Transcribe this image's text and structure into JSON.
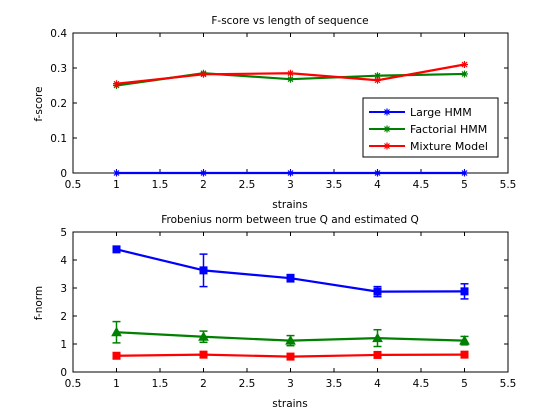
{
  "chart_data": [
    {
      "type": "line",
      "title": "F-score vs length of sequence",
      "xlabel": "strains",
      "ylabel": "f-score",
      "xlim": [
        0.5,
        5.5
      ],
      "ylim": [
        0,
        0.4
      ],
      "xticks": [
        0.5,
        1,
        1.5,
        2,
        2.5,
        3,
        3.5,
        4,
        4.5,
        5,
        5.5
      ],
      "yticks": [
        0,
        0.1,
        0.2,
        0.3,
        0.4
      ],
      "grid": false,
      "legend_position": "right",
      "x": [
        1,
        2,
        3,
        4,
        5
      ],
      "series": [
        {
          "name": "Large HMM",
          "color": "#0000ff",
          "marker": "star",
          "values": [
            0,
            0,
            0,
            0,
            0
          ]
        },
        {
          "name": "Factorial HMM",
          "color": "#008000",
          "marker": "star",
          "values": [
            0.25,
            0.285,
            0.268,
            0.278,
            0.283
          ]
        },
        {
          "name": "Mixture Model",
          "color": "#ff0000",
          "marker": "star",
          "values": [
            0.255,
            0.282,
            0.285,
            0.265,
            0.31
          ]
        }
      ]
    },
    {
      "type": "line",
      "title": "Frobenius norm between true Q and estimated Q",
      "xlabel": "strains",
      "ylabel": "f-norm",
      "xlim": [
        0.5,
        5.5
      ],
      "ylim": [
        0,
        5
      ],
      "xticks": [
        0.5,
        1,
        1.5,
        2,
        2.5,
        3,
        3.5,
        4,
        4.5,
        5,
        5.5
      ],
      "yticks": [
        0,
        1,
        2,
        3,
        4,
        5
      ],
      "grid": false,
      "x": [
        1,
        2,
        3,
        4,
        5
      ],
      "series": [
        {
          "color": "#0000ff",
          "marker": "square",
          "values": [
            4.38,
            3.63,
            3.35,
            2.87,
            2.88
          ],
          "err": [
            0.1,
            0.58,
            0.13,
            0.18,
            0.27
          ]
        },
        {
          "color": "#008000",
          "marker": "triangle",
          "values": [
            1.42,
            1.26,
            1.12,
            1.21,
            1.12
          ],
          "err": [
            0.38,
            0.2,
            0.18,
            0.3,
            0.15
          ]
        },
        {
          "color": "#ff0000",
          "marker": "square",
          "values": [
            0.58,
            0.62,
            0.55,
            0.61,
            0.62
          ],
          "err": [
            0.06,
            0.05,
            0.05,
            0.06,
            0.05
          ]
        }
      ]
    }
  ]
}
